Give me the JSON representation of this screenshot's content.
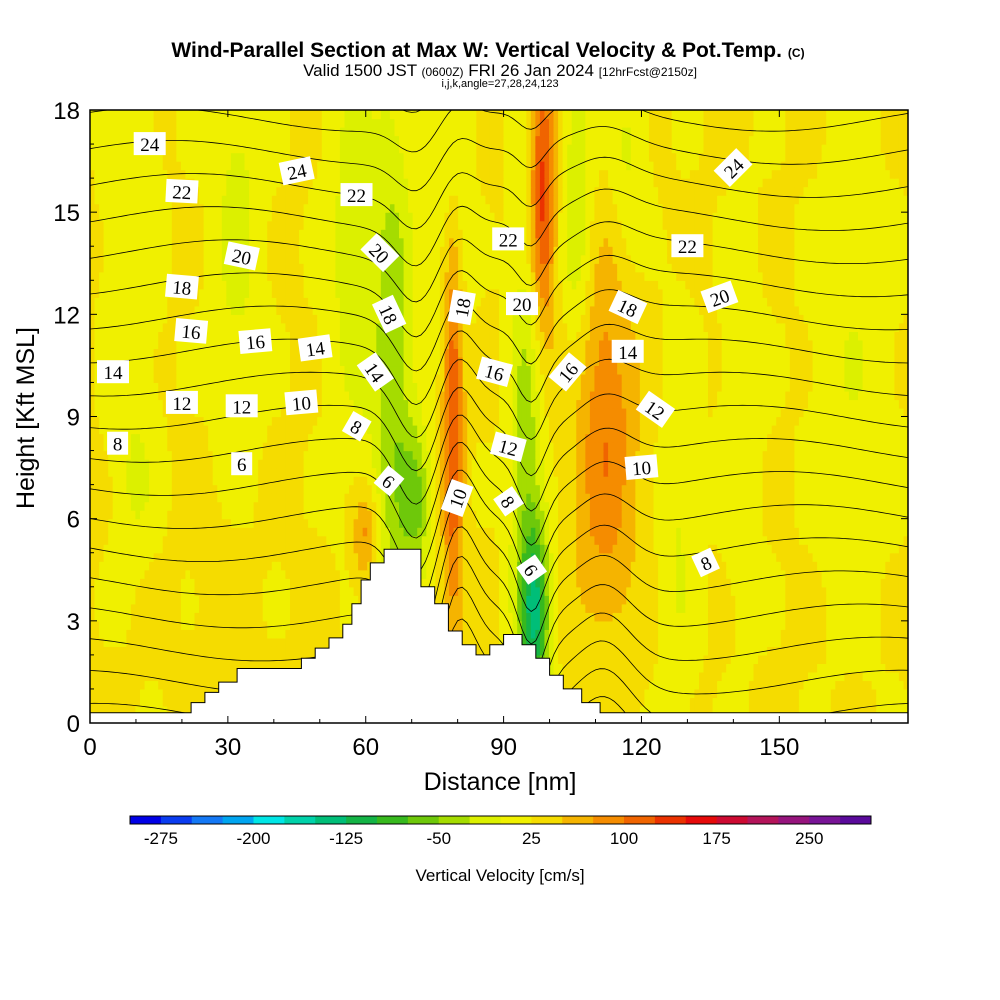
{
  "chart_data": {
    "type": "heatmap",
    "title": "Wind-Parallel Section at Max W: Vertical Velocity & Pot.Temp.",
    "title_mark": "(C)",
    "subtitle_parts": [
      "Valid 1500 JST ",
      "(0600Z)",
      " FRI 26 Jan 2024 ",
      "[12hrFcst@2150z]"
    ],
    "subtitle2": "i,j,k,angle=27,28,24,123",
    "xlabel": "Distance [nm]",
    "ylabel": "Height [Kft MSL]",
    "xlim": [
      0,
      178
    ],
    "ylim": [
      0,
      18
    ],
    "xticks": [
      "0",
      "30",
      "60",
      "90",
      "120",
      "150"
    ],
    "xtick_values": [
      0,
      30,
      60,
      90,
      120,
      150
    ],
    "yticks": [
      "0",
      "3",
      "6",
      "9",
      "12",
      "15",
      "18"
    ],
    "ytick_values": [
      0,
      3,
      6,
      9,
      12,
      15,
      18
    ],
    "colorbar": {
      "label": "Vertical Velocity [cm/s]",
      "range": [
        -300,
        300
      ],
      "tick_labels": [
        "-275",
        "-200",
        "-125",
        "-50",
        "25",
        "100",
        "175",
        "250"
      ],
      "tick_values": [
        -275,
        -200,
        -125,
        -50,
        25,
        100,
        175,
        250
      ],
      "colors": [
        "#0000e6",
        "#0a3cf0",
        "#1478f5",
        "#00a5f0",
        "#00e6e6",
        "#00d2aa",
        "#00be78",
        "#14b446",
        "#37b91e",
        "#6ec80a",
        "#a5dc00",
        "#dcf000",
        "#f0f000",
        "#f5dc00",
        "#f5b400",
        "#f58c00",
        "#f06400",
        "#eb3200",
        "#e60a0a",
        "#cd0a32",
        "#b4145a",
        "#96147d",
        "#781496",
        "#5a0a9b"
      ]
    },
    "terrain": [
      [
        0,
        0.3
      ],
      [
        22,
        0.3
      ],
      [
        22,
        0.6
      ],
      [
        25,
        0.6
      ],
      [
        25,
        0.9
      ],
      [
        28,
        0.9
      ],
      [
        28,
        1.2
      ],
      [
        32,
        1.2
      ],
      [
        32,
        1.6
      ],
      [
        46,
        1.6
      ],
      [
        46,
        1.9
      ],
      [
        49,
        1.9
      ],
      [
        49,
        2.2
      ],
      [
        52,
        2.2
      ],
      [
        52,
        2.5
      ],
      [
        55,
        2.5
      ],
      [
        55,
        2.9
      ],
      [
        57,
        2.9
      ],
      [
        57,
        3.5
      ],
      [
        59,
        3.5
      ],
      [
        59,
        4.2
      ],
      [
        61,
        4.2
      ],
      [
        61,
        4.7
      ],
      [
        64,
        4.7
      ],
      [
        64,
        5.1
      ],
      [
        72,
        5.1
      ],
      [
        72,
        4.0
      ],
      [
        75,
        4.0
      ],
      [
        75,
        3.5
      ],
      [
        78,
        3.5
      ],
      [
        78,
        2.7
      ],
      [
        81,
        2.7
      ],
      [
        81,
        2.3
      ],
      [
        84,
        2.3
      ],
      [
        84,
        2.0
      ],
      [
        87,
        2.0
      ],
      [
        87,
        2.3
      ],
      [
        90,
        2.3
      ],
      [
        90,
        2.6
      ],
      [
        94,
        2.6
      ],
      [
        94,
        2.3
      ],
      [
        97,
        2.3
      ],
      [
        97,
        1.9
      ],
      [
        100,
        1.9
      ],
      [
        100,
        1.4
      ],
      [
        103,
        1.4
      ],
      [
        103,
        1.0
      ],
      [
        107,
        1.0
      ],
      [
        107,
        0.6
      ],
      [
        111,
        0.6
      ],
      [
        111,
        0.3
      ],
      [
        178,
        0.3
      ]
    ],
    "w_features": [
      {
        "x": 9,
        "y": 14.5,
        "sx": 4,
        "sy": 5,
        "value": -25
      },
      {
        "x": 32,
        "y": 15.0,
        "sx": 4,
        "sy": 5,
        "value": -35
      },
      {
        "x": 57,
        "y": 14.0,
        "sx": 4,
        "sy": 4.5,
        "value": -40
      },
      {
        "x": 66,
        "y": 10.0,
        "sx": 3.2,
        "sy": 6,
        "value": -70
      },
      {
        "x": 71,
        "y": 6.5,
        "sx": 2.4,
        "sy": 1.6,
        "value": -75
      },
      {
        "x": 79,
        "y": 15.5,
        "sx": 2.5,
        "sy": 3.5,
        "value": -60
      },
      {
        "x": 79,
        "y": 9.8,
        "sx": 1.6,
        "sy": 5,
        "value": 110
      },
      {
        "x": 98.5,
        "y": 15.5,
        "sx": 2,
        "sy": 3,
        "value": 110
      },
      {
        "x": 95,
        "y": 7.5,
        "sx": 2.6,
        "sy": 5,
        "value": -70
      },
      {
        "x": 97,
        "y": 3.2,
        "sx": 2.2,
        "sy": 1.8,
        "value": -130
      },
      {
        "x": 106,
        "y": 15.0,
        "sx": 2.5,
        "sy": 3.5,
        "value": -55
      },
      {
        "x": 112,
        "y": 8.5,
        "sx": 5,
        "sy": 4,
        "value": 70
      },
      {
        "x": 117,
        "y": 16.5,
        "sx": 3,
        "sy": 2.5,
        "value": -35
      },
      {
        "x": 128,
        "y": 6.0,
        "sx": 3,
        "sy": 4,
        "value": -30
      },
      {
        "x": 142,
        "y": 9.0,
        "sx": 3,
        "sy": 4,
        "value": -25
      },
      {
        "x": 166,
        "y": 10.5,
        "sx": 6,
        "sy": 5,
        "value": -25
      },
      {
        "x": 30,
        "y": 3.0,
        "sx": 4,
        "sy": 2.5,
        "value": 12
      },
      {
        "x": 10,
        "y": 7.0,
        "sx": 3,
        "sy": 1.5,
        "value": -25
      },
      {
        "x": 60,
        "y": 5.5,
        "sx": 2,
        "sy": 1,
        "value": 60
      }
    ],
    "theta_labels": [
      {
        "text": "24",
        "x": 13,
        "y": 17.0,
        "angle": 0
      },
      {
        "text": "22",
        "x": 20,
        "y": 15.6,
        "angle": 3
      },
      {
        "text": "24",
        "x": 45,
        "y": 16.2,
        "angle": -12
      },
      {
        "text": "22",
        "x": 58,
        "y": 15.5,
        "angle": 0
      },
      {
        "text": "20",
        "x": 33,
        "y": 13.7,
        "angle": 12
      },
      {
        "text": "20",
        "x": 63,
        "y": 13.8,
        "angle": 45
      },
      {
        "text": "18",
        "x": 20,
        "y": 12.8,
        "angle": 5
      },
      {
        "text": "18",
        "x": 65,
        "y": 12.0,
        "angle": 65
      },
      {
        "text": "18",
        "x": 81,
        "y": 12.2,
        "angle": -80
      },
      {
        "text": "16",
        "x": 22,
        "y": 11.5,
        "angle": 5
      },
      {
        "text": "16",
        "x": 36,
        "y": 11.2,
        "angle": -5
      },
      {
        "text": "14",
        "x": 5,
        "y": 10.3,
        "angle": 0
      },
      {
        "text": "14",
        "x": 49,
        "y": 11.0,
        "angle": -8
      },
      {
        "text": "14",
        "x": 62,
        "y": 10.3,
        "angle": 55
      },
      {
        "text": "12",
        "x": 20,
        "y": 9.4,
        "angle": 0
      },
      {
        "text": "12",
        "x": 33,
        "y": 9.3,
        "angle": 0
      },
      {
        "text": "10",
        "x": 46,
        "y": 9.4,
        "angle": -5
      },
      {
        "text": "8",
        "x": 6,
        "y": 8.2,
        "angle": 0
      },
      {
        "text": "8",
        "x": 58,
        "y": 8.7,
        "angle": 30
      },
      {
        "text": "6",
        "x": 33,
        "y": 7.6,
        "angle": 0
      },
      {
        "text": "6",
        "x": 65,
        "y": 7.1,
        "angle": 40
      },
      {
        "text": "10",
        "x": 80,
        "y": 6.6,
        "angle": -70
      },
      {
        "text": "22",
        "x": 91,
        "y": 14.2,
        "angle": 0
      },
      {
        "text": "20",
        "x": 94,
        "y": 12.3,
        "angle": 0
      },
      {
        "text": "16",
        "x": 88,
        "y": 10.3,
        "angle": 15
      },
      {
        "text": "12",
        "x": 91,
        "y": 8.1,
        "angle": 15
      },
      {
        "text": "8",
        "x": 91,
        "y": 6.5,
        "angle": 55
      },
      {
        "text": "6",
        "x": 96,
        "y": 4.5,
        "angle": 55
      },
      {
        "text": "16",
        "x": 104,
        "y": 10.3,
        "angle": -50
      },
      {
        "text": "18",
        "x": 117,
        "y": 12.2,
        "angle": 25
      },
      {
        "text": "14",
        "x": 117,
        "y": 10.9,
        "angle": 0
      },
      {
        "text": "12",
        "x": 123,
        "y": 9.2,
        "angle": 35
      },
      {
        "text": "10",
        "x": 120,
        "y": 7.5,
        "angle": -5
      },
      {
        "text": "22",
        "x": 130,
        "y": 14.0,
        "angle": 0
      },
      {
        "text": "20",
        "x": 137,
        "y": 12.5,
        "angle": -20
      },
      {
        "text": "24",
        "x": 140,
        "y": 16.3,
        "angle": -45
      },
      {
        "text": "8",
        "x": 134,
        "y": 4.7,
        "angle": -25
      }
    ]
  }
}
